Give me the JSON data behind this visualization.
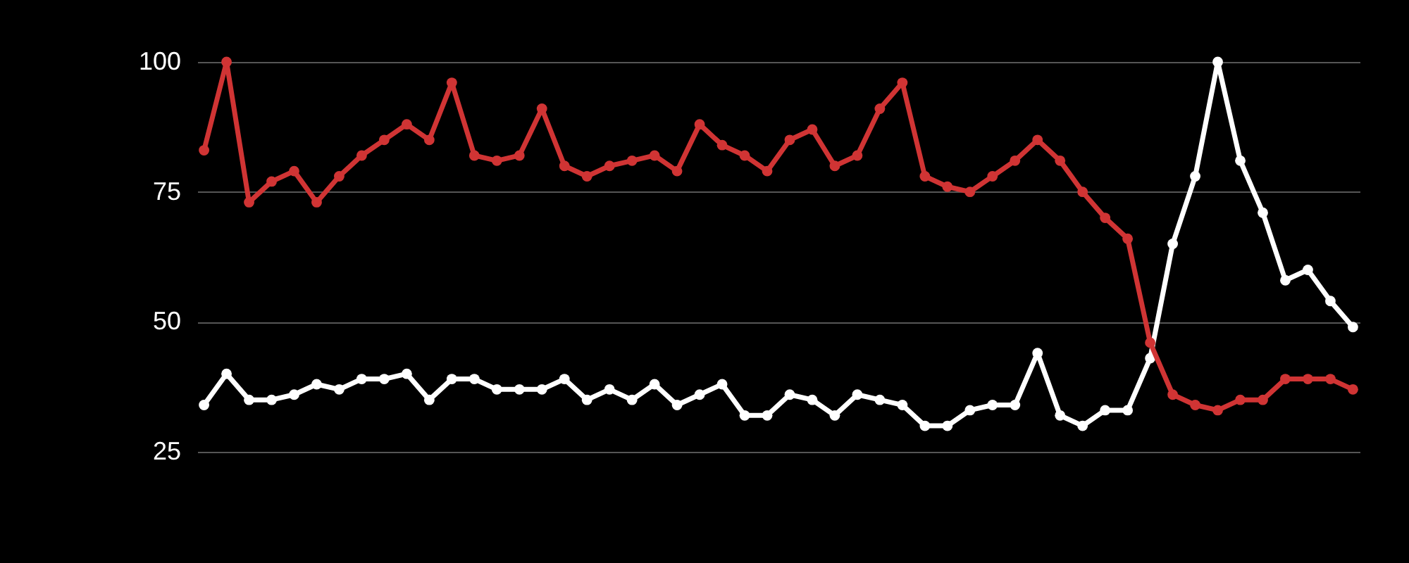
{
  "chart_data": {
    "type": "line",
    "categories": [
      null,
      null,
      null,
      null,
      null,
      null,
      null,
      null,
      null,
      null,
      null,
      null,
      null,
      null,
      null,
      null,
      null,
      null,
      null,
      null,
      null,
      null,
      null,
      null,
      null,
      null,
      null,
      null,
      null,
      null,
      null,
      null,
      null,
      null,
      null,
      null,
      null,
      null,
      null,
      null,
      null,
      null,
      null,
      null,
      null,
      null,
      null,
      null,
      null,
      null,
      null,
      null
    ],
    "series": [
      {
        "color": "#ffffff",
        "values": [
          34,
          40,
          35,
          35,
          36,
          38,
          37,
          39,
          39,
          40,
          35,
          39,
          39,
          37,
          37,
          37,
          39,
          35,
          37,
          35,
          38,
          34,
          36,
          38,
          32,
          32,
          36,
          35,
          32,
          36,
          35,
          34,
          30,
          30,
          33,
          34,
          34,
          44,
          32,
          30,
          33,
          33,
          43,
          65,
          78,
          100,
          81,
          71,
          58,
          60,
          54,
          49
        ]
      },
      {
        "color": "#d03434",
        "values": [
          83,
          100,
          73,
          77,
          79,
          73,
          78,
          82,
          85,
          88,
          85,
          96,
          82,
          81,
          82,
          91,
          80,
          78,
          80,
          81,
          82,
          79,
          88,
          84,
          82,
          79,
          85,
          87,
          80,
          82,
          91,
          96,
          78,
          76,
          75,
          78,
          81,
          85,
          81,
          75,
          70,
          66,
          46,
          36,
          34,
          33,
          35,
          35,
          39,
          39,
          39,
          37
        ]
      }
    ],
    "ylim": [
      25,
      100
    ],
    "yticks": [
      25,
      50,
      75,
      100
    ],
    "grid": "y",
    "tick_labels": "y",
    "marker": "circle",
    "line_style": "solid"
  }
}
